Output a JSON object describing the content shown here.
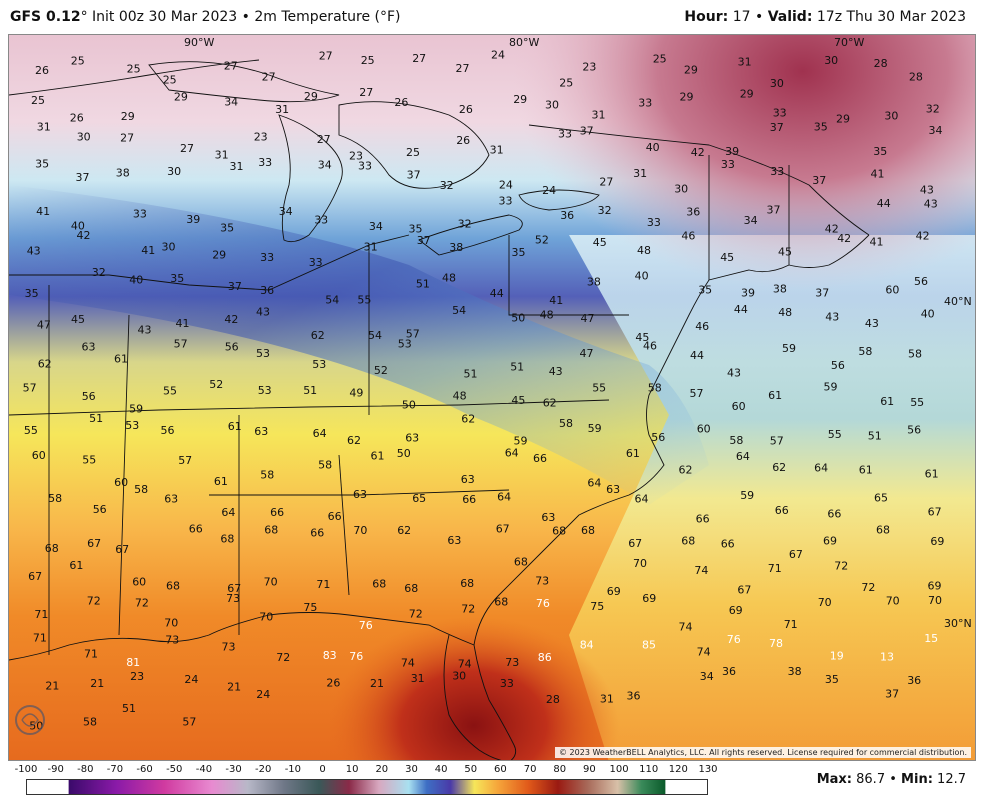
{
  "header": {
    "model": "GFS 0.12",
    "deg": "°",
    "init": "Init 00z 30 Mar 2023",
    "sep": "•",
    "product": "2m Temperature (°F)",
    "hour_label": "Hour:",
    "hour_value": "17",
    "valid_label": "Valid:",
    "valid_value": "17z Thu 30 Mar 2023"
  },
  "map": {
    "lon_labels": [
      "90°W",
      "80°W",
      "70°W"
    ],
    "lat_labels": [
      "40°N",
      "30°N"
    ],
    "copyright": "© 2023 WeatherBELL Analytics, LLC. All rights reserved. License required for commercial distribution.",
    "logo_text": "WEATHERBELL",
    "station_values": [
      {
        "v": "26"
      },
      {
        "v": "25"
      },
      {
        "v": "25"
      },
      {
        "v": "25"
      },
      {
        "v": "27"
      },
      {
        "v": "27"
      },
      {
        "v": "27"
      },
      {
        "v": "25"
      },
      {
        "v": "27"
      },
      {
        "v": "27"
      },
      {
        "v": "24"
      },
      {
        "v": "25"
      },
      {
        "v": "23"
      },
      {
        "v": "25"
      },
      {
        "v": "29"
      },
      {
        "v": "31"
      },
      {
        "v": "30"
      },
      {
        "v": "30"
      },
      {
        "v": "28"
      },
      {
        "v": "28"
      },
      {
        "v": "25"
      },
      {
        "v": "26"
      },
      {
        "v": "29"
      },
      {
        "v": "29"
      },
      {
        "v": "34"
      },
      {
        "v": "31"
      },
      {
        "v": "29"
      },
      {
        "v": "27"
      },
      {
        "v": "26"
      },
      {
        "v": "26"
      },
      {
        "v": "29"
      },
      {
        "v": "30"
      },
      {
        "v": "31"
      },
      {
        "v": "33"
      },
      {
        "v": "29"
      },
      {
        "v": "29"
      },
      {
        "v": "33"
      },
      {
        "v": "29"
      },
      {
        "v": "30"
      },
      {
        "v": "32"
      },
      {
        "v": "31"
      },
      {
        "v": "30"
      },
      {
        "v": "27"
      },
      {
        "v": "27"
      },
      {
        "v": "31"
      },
      {
        "v": "23"
      },
      {
        "v": "27"
      },
      {
        "v": "23"
      },
      {
        "v": "25"
      },
      {
        "v": "26"
      },
      {
        "v": "31"
      },
      {
        "v": "33"
      },
      {
        "v": "37"
      },
      {
        "v": "40"
      },
      {
        "v": "42"
      },
      {
        "v": "39"
      },
      {
        "v": "37"
      },
      {
        "v": "35"
      },
      {
        "v": "35"
      },
      {
        "v": "34"
      },
      {
        "v": "35"
      },
      {
        "v": "37"
      },
      {
        "v": "38"
      },
      {
        "v": "30"
      },
      {
        "v": "31"
      },
      {
        "v": "33"
      },
      {
        "v": "34"
      },
      {
        "v": "33"
      },
      {
        "v": "37"
      },
      {
        "v": "32"
      },
      {
        "v": "24"
      },
      {
        "v": "24"
      },
      {
        "v": "27"
      },
      {
        "v": "31"
      },
      {
        "v": "30"
      },
      {
        "v": "33"
      },
      {
        "v": "33"
      },
      {
        "v": "37"
      },
      {
        "v": "41"
      },
      {
        "v": "43"
      },
      {
        "v": "41"
      },
      {
        "v": "40"
      },
      {
        "v": "33"
      },
      {
        "v": "39"
      },
      {
        "v": "35"
      },
      {
        "v": "34"
      },
      {
        "v": "33"
      },
      {
        "v": "34"
      },
      {
        "v": "35"
      },
      {
        "v": "32"
      },
      {
        "v": "33"
      },
      {
        "v": "36"
      },
      {
        "v": "32"
      },
      {
        "v": "33"
      },
      {
        "v": "36"
      },
      {
        "v": "34"
      },
      {
        "v": "37"
      },
      {
        "v": "42"
      },
      {
        "v": "44"
      },
      {
        "v": "43"
      },
      {
        "v": "43"
      },
      {
        "v": "42"
      },
      {
        "v": "41"
      },
      {
        "v": "30"
      },
      {
        "v": "29"
      },
      {
        "v": "33"
      },
      {
        "v": "33"
      },
      {
        "v": "31"
      },
      {
        "v": "37"
      },
      {
        "v": "38"
      },
      {
        "v": "35"
      },
      {
        "v": "52"
      },
      {
        "v": "45"
      },
      {
        "v": "48"
      },
      {
        "v": "46"
      },
      {
        "v": "45"
      },
      {
        "v": "45"
      },
      {
        "v": "42"
      },
      {
        "v": "41"
      },
      {
        "v": "42"
      },
      {
        "v": "35"
      },
      {
        "v": "32"
      },
      {
        "v": "40"
      },
      {
        "v": "35"
      },
      {
        "v": "37"
      },
      {
        "v": "36"
      },
      {
        "v": "54"
      },
      {
        "v": "55"
      },
      {
        "v": "51"
      },
      {
        "v": "48"
      },
      {
        "v": "44"
      },
      {
        "v": "41"
      },
      {
        "v": "38"
      },
      {
        "v": "40"
      },
      {
        "v": "35"
      },
      {
        "v": "39"
      },
      {
        "v": "38"
      },
      {
        "v": "37"
      },
      {
        "v": "60"
      },
      {
        "v": "56"
      },
      {
        "v": "47"
      },
      {
        "v": "45"
      },
      {
        "v": "43"
      },
      {
        "v": "41"
      },
      {
        "v": "42"
      },
      {
        "v": "43"
      },
      {
        "v": "62"
      },
      {
        "v": "54"
      },
      {
        "v": "57"
      },
      {
        "v": "54"
      },
      {
        "v": "50"
      },
      {
        "v": "48"
      },
      {
        "v": "47"
      },
      {
        "v": "45"
      },
      {
        "v": "46"
      },
      {
        "v": "44"
      },
      {
        "v": "48"
      },
      {
        "v": "43"
      },
      {
        "v": "43"
      },
      {
        "v": "40"
      },
      {
        "v": "62"
      },
      {
        "v": "63"
      },
      {
        "v": "61"
      },
      {
        "v": "57"
      },
      {
        "v": "56"
      },
      {
        "v": "53"
      },
      {
        "v": "53"
      },
      {
        "v": "52"
      },
      {
        "v": "53"
      },
      {
        "v": "51"
      },
      {
        "v": "51"
      },
      {
        "v": "43"
      },
      {
        "v": "47"
      },
      {
        "v": "46"
      },
      {
        "v": "44"
      },
      {
        "v": "43"
      },
      {
        "v": "59"
      },
      {
        "v": "56"
      },
      {
        "v": "58"
      },
      {
        "v": "58"
      },
      {
        "v": "57"
      },
      {
        "v": "56"
      },
      {
        "v": "59"
      },
      {
        "v": "55"
      },
      {
        "v": "52"
      },
      {
        "v": "53"
      },
      {
        "v": "51"
      },
      {
        "v": "49"
      },
      {
        "v": "50"
      },
      {
        "v": "48"
      },
      {
        "v": "45"
      },
      {
        "v": "62"
      },
      {
        "v": "55"
      },
      {
        "v": "58"
      },
      {
        "v": "57"
      },
      {
        "v": "60"
      },
      {
        "v": "61"
      },
      {
        "v": "59"
      },
      {
        "v": "61"
      },
      {
        "v": "55"
      },
      {
        "v": "55"
      },
      {
        "v": "51"
      },
      {
        "v": "53"
      },
      {
        "v": "56"
      },
      {
        "v": "61"
      },
      {
        "v": "63"
      },
      {
        "v": "64"
      },
      {
        "v": "62"
      },
      {
        "v": "63"
      },
      {
        "v": "62"
      },
      {
        "v": "59"
      },
      {
        "v": "58"
      },
      {
        "v": "59"
      },
      {
        "v": "56"
      },
      {
        "v": "60"
      },
      {
        "v": "58"
      },
      {
        "v": "57"
      },
      {
        "v": "55"
      },
      {
        "v": "51"
      },
      {
        "v": "56"
      },
      {
        "v": "60"
      },
      {
        "v": "55"
      },
      {
        "v": "60"
      },
      {
        "v": "57"
      },
      {
        "v": "61"
      },
      {
        "v": "58"
      },
      {
        "v": "58"
      },
      {
        "v": "61"
      },
      {
        "v": "50"
      },
      {
        "v": "63"
      },
      {
        "v": "64"
      },
      {
        "v": "66"
      },
      {
        "v": "64"
      },
      {
        "v": "61"
      },
      {
        "v": "62"
      },
      {
        "v": "64"
      },
      {
        "v": "62"
      },
      {
        "v": "64"
      },
      {
        "v": "61"
      },
      {
        "v": "61"
      },
      {
        "v": "58"
      },
      {
        "v": "56"
      },
      {
        "v": "58"
      },
      {
        "v": "63"
      },
      {
        "v": "64"
      },
      {
        "v": "66"
      },
      {
        "v": "66"
      },
      {
        "v": "63"
      },
      {
        "v": "65"
      },
      {
        "v": "66"
      },
      {
        "v": "64"
      },
      {
        "v": "63"
      },
      {
        "v": "63"
      },
      {
        "v": "64"
      },
      {
        "v": "66"
      },
      {
        "v": "59"
      },
      {
        "v": "66"
      },
      {
        "v": "66"
      },
      {
        "v": "65"
      },
      {
        "v": "67"
      },
      {
        "v": "68"
      },
      {
        "v": "67"
      },
      {
        "v": "67"
      },
      {
        "v": "66"
      },
      {
        "v": "68"
      },
      {
        "v": "68"
      },
      {
        "v": "66"
      },
      {
        "v": "70"
      },
      {
        "v": "62"
      },
      {
        "v": "63"
      },
      {
        "v": "67"
      },
      {
        "v": "68"
      },
      {
        "v": "68"
      },
      {
        "v": "67"
      },
      {
        "v": "68"
      },
      {
        "v": "66"
      },
      {
        "v": "67"
      },
      {
        "v": "69"
      },
      {
        "v": "68"
      },
      {
        "v": "69"
      },
      {
        "v": "67"
      },
      {
        "v": "61"
      },
      {
        "v": "60"
      },
      {
        "v": "68"
      },
      {
        "v": "67"
      },
      {
        "v": "70"
      },
      {
        "v": "71"
      },
      {
        "v": "68"
      },
      {
        "v": "68"
      },
      {
        "v": "68"
      },
      {
        "v": "68"
      },
      {
        "v": "73"
      },
      {
        "v": "69"
      },
      {
        "v": "70"
      },
      {
        "v": "74"
      },
      {
        "v": "67"
      },
      {
        "v": "71"
      },
      {
        "v": "72"
      },
      {
        "v": "72"
      },
      {
        "v": "69"
      },
      {
        "v": "71"
      },
      {
        "v": "72"
      },
      {
        "v": "72"
      },
      {
        "v": "70"
      },
      {
        "v": "73"
      },
      {
        "v": "70"
      },
      {
        "v": "75"
      },
      {
        "v": "76"
      },
      {
        "v": "72"
      },
      {
        "v": "72"
      },
      {
        "v": "68"
      },
      {
        "v": "76"
      },
      {
        "v": "75"
      },
      {
        "v": "69"
      },
      {
        "v": "74"
      },
      {
        "v": "69"
      },
      {
        "v": "71"
      },
      {
        "v": "70"
      },
      {
        "v": "70"
      },
      {
        "v": "70"
      },
      {
        "v": "71"
      },
      {
        "v": "71"
      },
      {
        "v": "81"
      },
      {
        "v": "73"
      },
      {
        "v": "73"
      },
      {
        "v": "72"
      },
      {
        "v": "83"
      },
      {
        "v": "76"
      },
      {
        "v": "74"
      },
      {
        "v": "74"
      },
      {
        "v": "73"
      },
      {
        "v": "86"
      },
      {
        "v": "84"
      },
      {
        "v": "85"
      },
      {
        "v": "74"
      },
      {
        "v": "76"
      },
      {
        "v": "78"
      },
      {
        "v": "19"
      },
      {
        "v": "13"
      },
      {
        "v": "15"
      },
      {
        "v": "21"
      },
      {
        "v": "21"
      },
      {
        "v": "23"
      },
      {
        "v": "24"
      },
      {
        "v": "21"
      },
      {
        "v": "24"
      },
      {
        "v": "26"
      },
      {
        "v": "21"
      },
      {
        "v": "31"
      },
      {
        "v": "30"
      },
      {
        "v": "33"
      },
      {
        "v": "28"
      },
      {
        "v": "31"
      },
      {
        "v": "36"
      },
      {
        "v": "34"
      },
      {
        "v": "36"
      },
      {
        "v": "38"
      },
      {
        "v": "35"
      },
      {
        "v": "37"
      },
      {
        "v": "36"
      },
      {
        "v": "50"
      },
      {
        "v": "58"
      },
      {
        "v": "51"
      },
      {
        "v": "57"
      }
    ]
  },
  "colorbar": {
    "ticks": [
      "-100",
      "-90",
      "-80",
      "-70",
      "-60",
      "-50",
      "-40",
      "-30",
      "-20",
      "-10",
      "0",
      "10",
      "20",
      "30",
      "40",
      "50",
      "60",
      "70",
      "80",
      "90",
      "100",
      "110",
      "120",
      "130"
    ],
    "max_label": "Max:",
    "max_value": "86.7",
    "sep": "•",
    "min_label": "Min:",
    "min_value": "12.7"
  },
  "colors": {
    "cold_deep": "#4a3aa8",
    "cold": "#3e6fc4",
    "cool": "#a8d8ea",
    "mild": "#f3f0a0",
    "warm": "#f5a43a",
    "hot": "#e15a1a",
    "very_hot": "#9a1a12",
    "freezing": "#d8b8c8",
    "subfreezing": "#b0475c"
  }
}
